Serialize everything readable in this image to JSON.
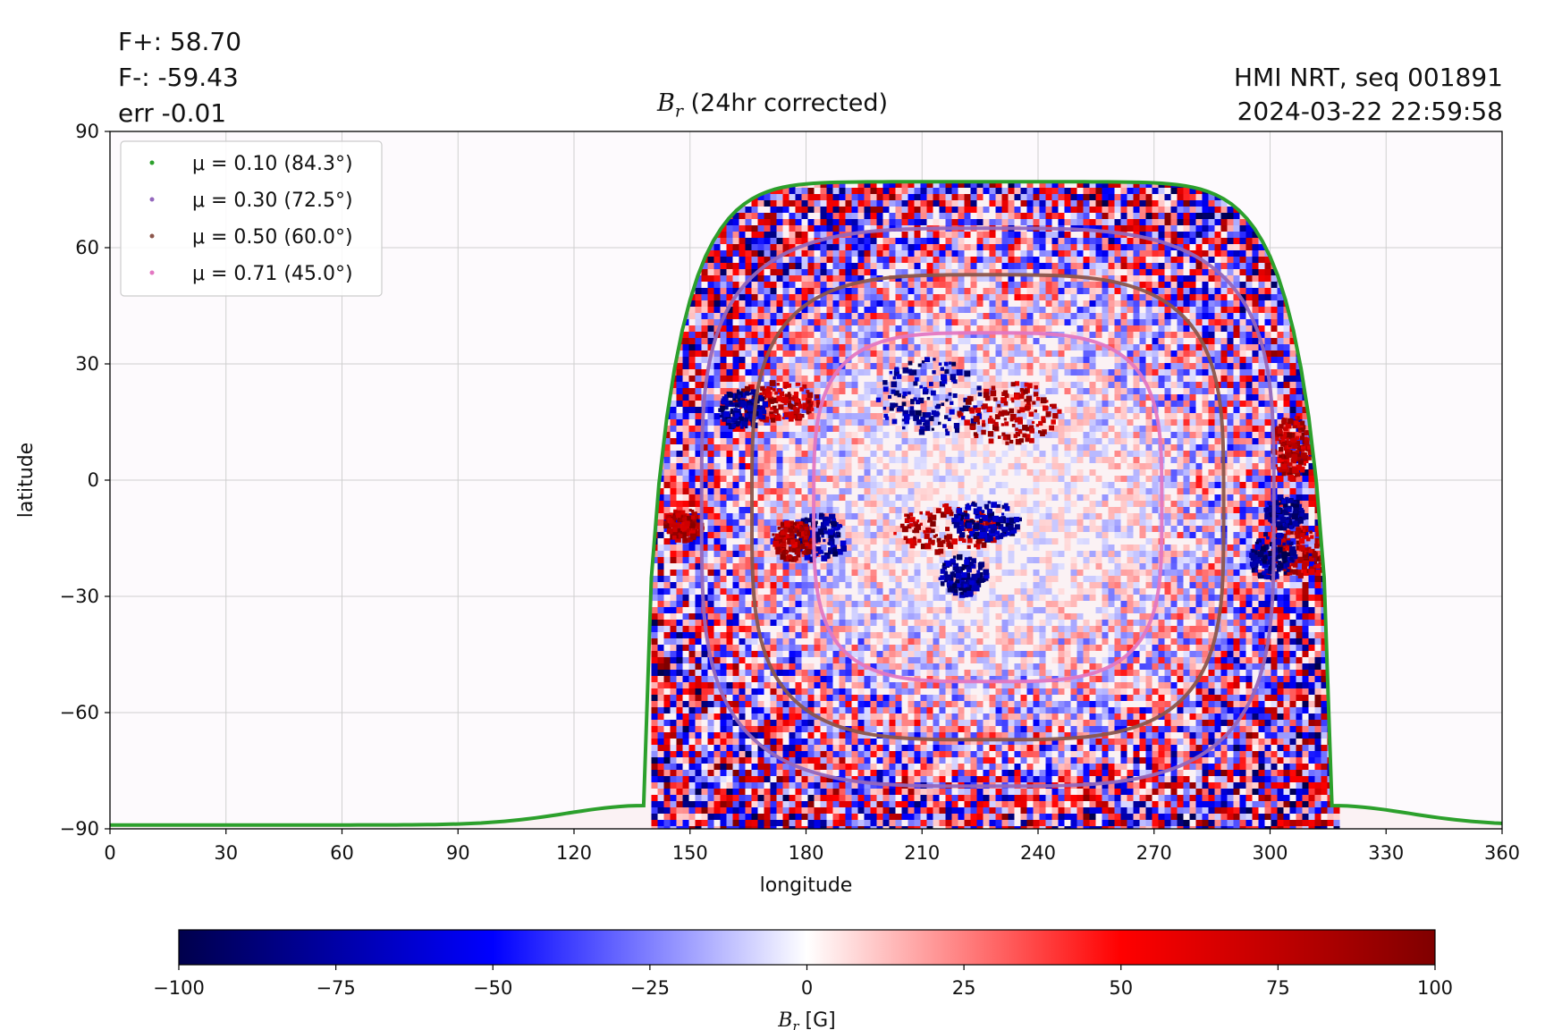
{
  "header": {
    "flux_pos": "F+: 58.70",
    "flux_neg": "F-: -59.43",
    "flux_err": "err -0.01",
    "source": "HMI NRT, seq 001891",
    "timestamp": "2024-03-22 22:59:58"
  },
  "chart_data": {
    "type": "heatmap",
    "title_symbol": "B",
    "title_subscript": "r",
    "title_text": "(24hr corrected)",
    "xlabel": "longitude",
    "ylabel": "latitude",
    "xlim": [
      0,
      360
    ],
    "ylim": [
      -90,
      90
    ],
    "xticks": [
      "0",
      "30",
      "60",
      "90",
      "120",
      "150",
      "180",
      "210",
      "240",
      "270",
      "300",
      "330",
      "360"
    ],
    "yticks": [
      "90",
      "60",
      "30",
      "0",
      "−30",
      "−60",
      "−90"
    ],
    "grid": true,
    "legend_position": "top-left",
    "series": [
      {
        "name": "μ = 0.10 (84.3°)",
        "color": "#2ca02c",
        "center_lon": 227,
        "center_lat": -6,
        "lon_half_width": 89,
        "lat_top": 77
      },
      {
        "name": "μ = 0.30 (72.5°)",
        "color": "#9467bd",
        "center_lon": 227,
        "center_lat": -7,
        "lon_half_width": 74,
        "lat_top": 65,
        "lat_bottom": -79
      },
      {
        "name": "μ = 0.50 (60.0°)",
        "color": "#8c564b",
        "center_lon": 227,
        "center_lat": -7,
        "lon_half_width": 61,
        "lat_top": 53,
        "lat_bottom": -67
      },
      {
        "name": "μ = 0.71 (45.0°)",
        "color": "#e377c2",
        "center_lon": 227,
        "center_lat": -7,
        "lon_half_width": 45,
        "lat_top": 38,
        "lat_bottom": -52
      }
    ],
    "active_regions": [
      {
        "lon": 212,
        "lat": 22,
        "lon_extent": 14,
        "lat_extent": 10,
        "polarity": "negative"
      },
      {
        "lon": 232,
        "lat": 18,
        "lon_extent": 13,
        "lat_extent": 8,
        "polarity": "positive"
      },
      {
        "lon": 216,
        "lat": -12,
        "lon_extent": 14,
        "lat_extent": 6,
        "polarity": "positive"
      },
      {
        "lon": 226,
        "lat": -10,
        "lon_extent": 9,
        "lat_extent": 5,
        "polarity": "negative"
      },
      {
        "lon": 172,
        "lat": 21,
        "lon_extent": 11,
        "lat_extent": 5,
        "polarity": "positive"
      },
      {
        "lon": 163,
        "lat": 19,
        "lon_extent": 6,
        "lat_extent": 5,
        "polarity": "negative"
      },
      {
        "lon": 183,
        "lat": -14,
        "lon_extent": 7,
        "lat_extent": 6,
        "polarity": "negative"
      },
      {
        "lon": 176,
        "lat": -15,
        "lon_extent": 5,
        "lat_extent": 5,
        "polarity": "positive"
      },
      {
        "lon": 308,
        "lat": -18,
        "lon_extent": 8,
        "lat_extent": 6,
        "polarity": "positive"
      },
      {
        "lon": 300,
        "lat": -19,
        "lon_extent": 6,
        "lat_extent": 6,
        "polarity": "negative"
      },
      {
        "lon": 305,
        "lat": 9,
        "lon_extent": 5,
        "lat_extent": 8,
        "polarity": "positive"
      },
      {
        "lon": 303,
        "lat": -8,
        "lon_extent": 5,
        "lat_extent": 4,
        "polarity": "negative"
      },
      {
        "lon": 148,
        "lat": -11,
        "lon_extent": 5,
        "lat_extent": 4,
        "polarity": "positive"
      },
      {
        "lon": 220,
        "lat": -24,
        "lon_extent": 6,
        "lat_extent": 5,
        "polarity": "negative"
      }
    ],
    "colorbar": {
      "label_symbol": "B",
      "label_subscript": "r",
      "label_unit": "[G]",
      "range": [
        -100,
        100
      ],
      "ticks": [
        "−100",
        "−75",
        "−50",
        "−25",
        "0",
        "25",
        "50",
        "75",
        "100"
      ],
      "colormap": "seismic"
    }
  }
}
